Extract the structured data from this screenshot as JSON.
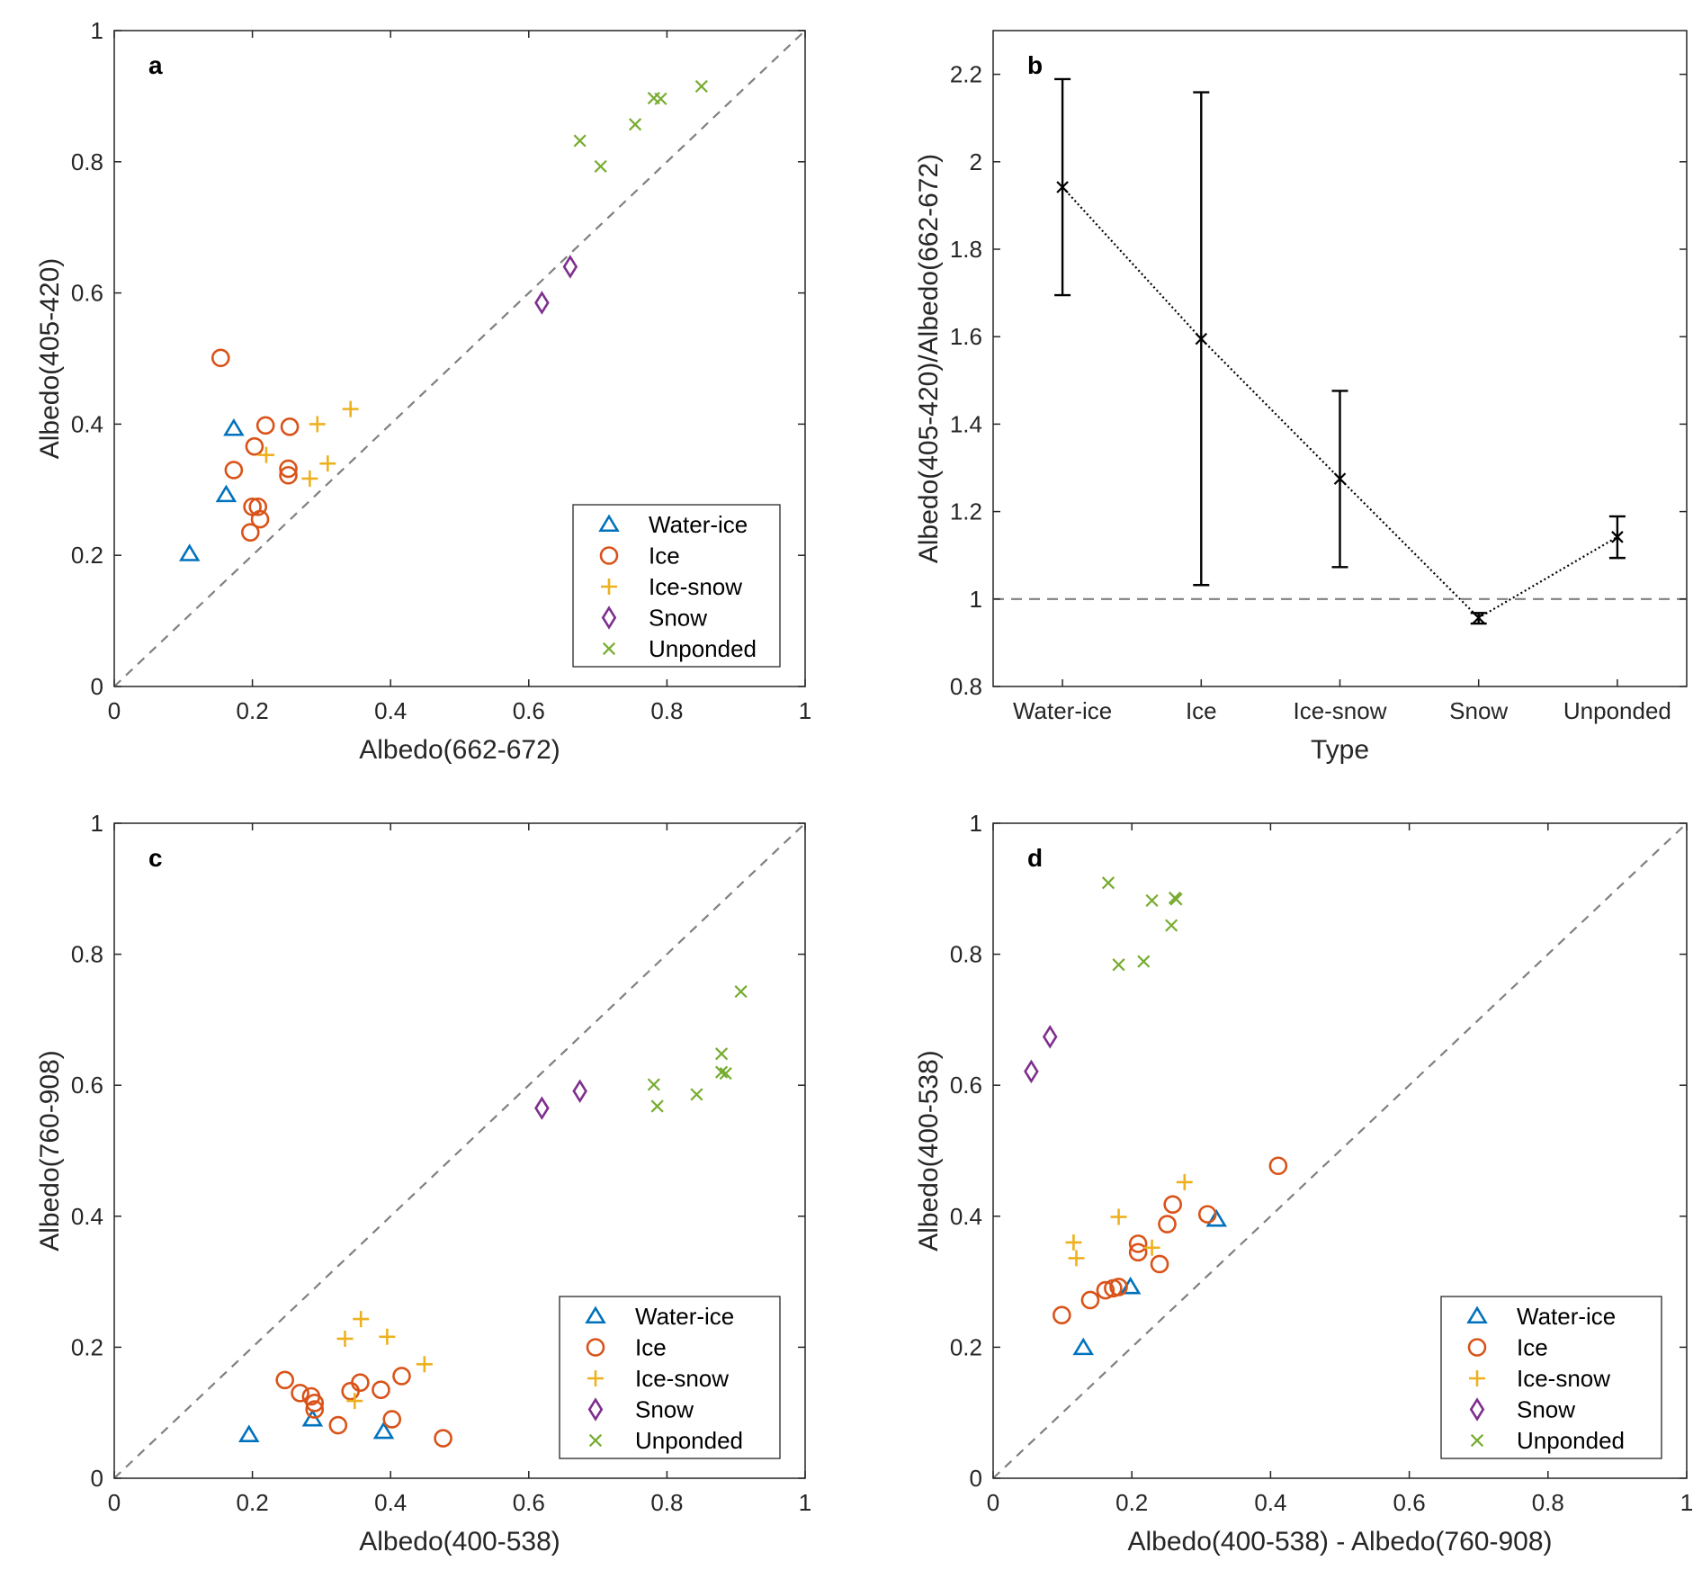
{
  "colors": {
    "Water-ice": "#0072bd",
    "Ice": "#d95319",
    "Ice-snow": "#edb120",
    "Snow": "#7e2f8e",
    "Unponded": "#77ac30",
    "reference_line": "#808080"
  },
  "legend": [
    "Water-ice",
    "Ice",
    "Ice-snow",
    "Snow",
    "Unponded"
  ],
  "chart_data": [
    {
      "panel": "a",
      "type": "scatter",
      "xlabel": "Albedo(662-672)",
      "ylabel": "Albedo(405-420)",
      "xlim": [
        0,
        1
      ],
      "ylim": [
        0,
        1
      ],
      "xticks": [
        "0",
        "0.2",
        "0.4",
        "0.6",
        "0.8",
        "1"
      ],
      "yticks": [
        "0",
        "0.2",
        "0.4",
        "0.6",
        "0.8",
        "1"
      ],
      "reference_line": "1:1 dashed",
      "legend_position": "bottom-right",
      "series": [
        {
          "name": "Water-ice",
          "marker": "triangle",
          "points": [
            [
              0.173,
              0.393
            ],
            [
              0.162,
              0.292
            ],
            [
              0.109,
              0.202
            ]
          ]
        },
        {
          "name": "Ice",
          "marker": "circle",
          "points": [
            [
              0.154,
              0.501
            ],
            [
              0.219,
              0.398
            ],
            [
              0.254,
              0.396
            ],
            [
              0.203,
              0.366
            ],
            [
              0.173,
              0.33
            ],
            [
              0.252,
              0.332
            ],
            [
              0.252,
              0.322
            ],
            [
              0.2,
              0.274
            ],
            [
              0.208,
              0.274
            ],
            [
              0.211,
              0.255
            ],
            [
              0.197,
              0.235
            ]
          ]
        },
        {
          "name": "Ice-snow",
          "marker": "plus",
          "points": [
            [
              0.342,
              0.423
            ],
            [
              0.294,
              0.4
            ],
            [
              0.22,
              0.353
            ],
            [
              0.309,
              0.34
            ],
            [
              0.283,
              0.317
            ]
          ]
        },
        {
          "name": "Snow",
          "marker": "diamond",
          "points": [
            [
              0.619,
              0.585
            ],
            [
              0.66,
              0.64
            ]
          ]
        },
        {
          "name": "Unponded",
          "marker": "x",
          "points": [
            [
              0.674,
              0.832
            ],
            [
              0.704,
              0.793
            ],
            [
              0.754,
              0.857
            ],
            [
              0.781,
              0.897
            ],
            [
              0.791,
              0.896
            ],
            [
              0.85,
              0.915
            ]
          ]
        }
      ]
    },
    {
      "panel": "b",
      "type": "line",
      "xlabel": "Type",
      "ylabel": "Albedo(405-420)/Albedo(662-672)",
      "categories": [
        "Water-ice",
        "Ice",
        "Ice-snow",
        "Snow",
        "Unponded"
      ],
      "ylim": [
        0.8,
        2.3
      ],
      "yticks": [
        "0.8",
        "1",
        "1.2",
        "1.4",
        "1.6",
        "1.8",
        "2",
        "2.2"
      ],
      "reference_line_y": 1,
      "values": [
        1.942,
        1.595,
        1.275,
        0.957,
        1.142
      ],
      "error_upper": [
        2.189,
        2.159,
        1.476,
        0.968,
        1.189
      ],
      "error_lower": [
        1.695,
        1.032,
        1.073,
        0.944,
        1.094
      ]
    },
    {
      "panel": "c",
      "type": "scatter",
      "xlabel": "Albedo(400-538)",
      "ylabel": "Albedo(760-908)",
      "xlim": [
        0,
        1
      ],
      "ylim": [
        0,
        1
      ],
      "xticks": [
        "0",
        "0.2",
        "0.4",
        "0.6",
        "0.8",
        "1"
      ],
      "yticks": [
        "0",
        "0.2",
        "0.4",
        "0.6",
        "0.8",
        "1"
      ],
      "reference_line": "1:1 dashed",
      "legend_position": "bottom-right",
      "series": [
        {
          "name": "Water-ice",
          "marker": "triangle",
          "points": [
            [
              0.195,
              0.066
            ],
            [
              0.287,
              0.09
            ],
            [
              0.39,
              0.071
            ]
          ]
        },
        {
          "name": "Ice",
          "marker": "circle",
          "points": [
            [
              0.247,
              0.15
            ],
            [
              0.269,
              0.13
            ],
            [
              0.285,
              0.125
            ],
            [
              0.29,
              0.115
            ],
            [
              0.29,
              0.105
            ],
            [
              0.324,
              0.081
            ],
            [
              0.342,
              0.133
            ],
            [
              0.356,
              0.146
            ],
            [
              0.386,
              0.135
            ],
            [
              0.402,
              0.09
            ],
            [
              0.416,
              0.156
            ],
            [
              0.476,
              0.061
            ]
          ]
        },
        {
          "name": "Ice-snow",
          "marker": "plus",
          "points": [
            [
              0.357,
              0.243
            ],
            [
              0.334,
              0.213
            ],
            [
              0.395,
              0.216
            ],
            [
              0.449,
              0.174
            ],
            [
              0.348,
              0.118
            ]
          ]
        },
        {
          "name": "Snow",
          "marker": "diamond",
          "points": [
            [
              0.619,
              0.565
            ],
            [
              0.674,
              0.591
            ]
          ]
        },
        {
          "name": "Unponded",
          "marker": "x",
          "points": [
            [
              0.781,
              0.601
            ],
            [
              0.786,
              0.568
            ],
            [
              0.843,
              0.586
            ],
            [
              0.879,
              0.648
            ],
            [
              0.879,
              0.62
            ],
            [
              0.885,
              0.618
            ],
            [
              0.907,
              0.743
            ]
          ]
        }
      ]
    },
    {
      "panel": "d",
      "type": "scatter",
      "xlabel": "Albedo(400-538) - Albedo(760-908)",
      "ylabel": "Albedo(400-538)",
      "xlim": [
        0,
        1
      ],
      "ylim": [
        0,
        1
      ],
      "xticks": [
        "0",
        "0.2",
        "0.4",
        "0.6",
        "0.8",
        "1"
      ],
      "yticks": [
        "0",
        "0.2",
        "0.4",
        "0.6",
        "0.8",
        "1"
      ],
      "reference_line": "1:1 dashed",
      "legend_position": "bottom-right",
      "series": [
        {
          "name": "Water-ice",
          "marker": "triangle",
          "points": [
            [
              0.13,
              0.199
            ],
            [
              0.198,
              0.292
            ],
            [
              0.322,
              0.395
            ]
          ]
        },
        {
          "name": "Ice",
          "marker": "circle",
          "points": [
            [
              0.099,
              0.249
            ],
            [
              0.14,
              0.272
            ],
            [
              0.162,
              0.287
            ],
            [
              0.173,
              0.29
            ],
            [
              0.181,
              0.292
            ],
            [
              0.209,
              0.358
            ],
            [
              0.209,
              0.345
            ],
            [
              0.24,
              0.327
            ],
            [
              0.251,
              0.388
            ],
            [
              0.259,
              0.418
            ],
            [
              0.309,
              0.403
            ],
            [
              0.411,
              0.477
            ]
          ]
        },
        {
          "name": "Ice-snow",
          "marker": "plus",
          "points": [
            [
              0.116,
              0.36
            ],
            [
              0.12,
              0.336
            ],
            [
              0.181,
              0.399
            ],
            [
              0.229,
              0.352
            ],
            [
              0.276,
              0.452
            ]
          ]
        },
        {
          "name": "Snow",
          "marker": "diamond",
          "points": [
            [
              0.055,
              0.621
            ],
            [
              0.082,
              0.674
            ]
          ]
        },
        {
          "name": "Unponded",
          "marker": "x",
          "points": [
            [
              0.166,
              0.909
            ],
            [
              0.181,
              0.784
            ],
            [
              0.217,
              0.789
            ],
            [
              0.229,
              0.882
            ],
            [
              0.257,
              0.844
            ],
            [
              0.262,
              0.886
            ],
            [
              0.264,
              0.884
            ]
          ]
        }
      ]
    }
  ]
}
